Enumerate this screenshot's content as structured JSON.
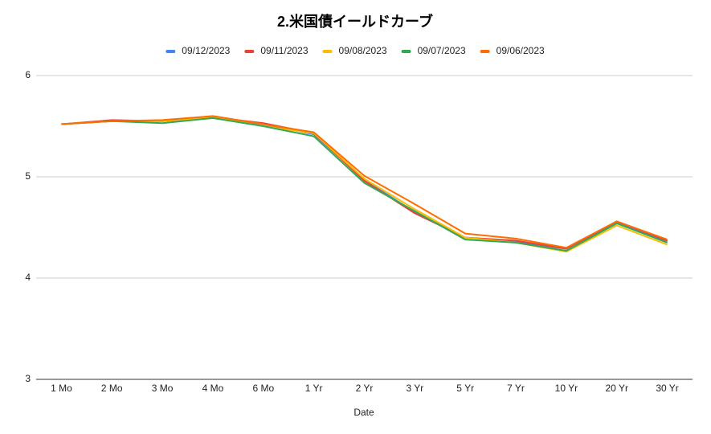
{
  "chart_data": {
    "type": "line",
    "title": "2.米国債イールドカーブ",
    "x_label": "Date",
    "categories": [
      "1 Mo",
      "2 Mo",
      "3 Mo",
      "4 Mo",
      "6 Mo",
      "1 Yr",
      "2 Yr",
      "3 Yr",
      "5 Yr",
      "7 Yr",
      "10 Yr",
      "20 Yr",
      "30 Yr"
    ],
    "series": [
      {
        "name": "09/12/2023",
        "color": "#4285f4",
        "values": [
          5.52,
          5.55,
          5.55,
          5.58,
          5.52,
          5.42,
          4.97,
          4.65,
          4.4,
          4.36,
          4.29,
          4.55,
          4.36
        ]
      },
      {
        "name": "09/11/2023",
        "color": "#ea4335",
        "values": [
          5.52,
          5.56,
          5.55,
          5.59,
          5.53,
          5.43,
          4.96,
          4.64,
          4.4,
          4.37,
          4.29,
          4.56,
          4.37
        ]
      },
      {
        "name": "09/08/2023",
        "color": "#fbbc04",
        "values": [
          5.52,
          5.55,
          5.55,
          5.59,
          5.5,
          5.43,
          4.98,
          4.68,
          4.4,
          4.35,
          4.26,
          4.52,
          4.33
        ]
      },
      {
        "name": "09/07/2023",
        "color": "#34a853",
        "values": [
          5.52,
          5.55,
          5.53,
          5.58,
          5.5,
          5.4,
          4.94,
          4.66,
          4.38,
          4.35,
          4.27,
          4.54,
          4.35
        ]
      },
      {
        "name": "09/06/2023",
        "color": "#ff6d01",
        "values": [
          5.52,
          5.55,
          5.56,
          5.6,
          5.52,
          5.44,
          5.01,
          4.73,
          4.44,
          4.39,
          4.3,
          4.56,
          4.38
        ]
      }
    ],
    "ylim": [
      3,
      6
    ],
    "yticks": [
      3,
      4,
      5,
      6
    ],
    "grid": true,
    "legend": "top"
  }
}
